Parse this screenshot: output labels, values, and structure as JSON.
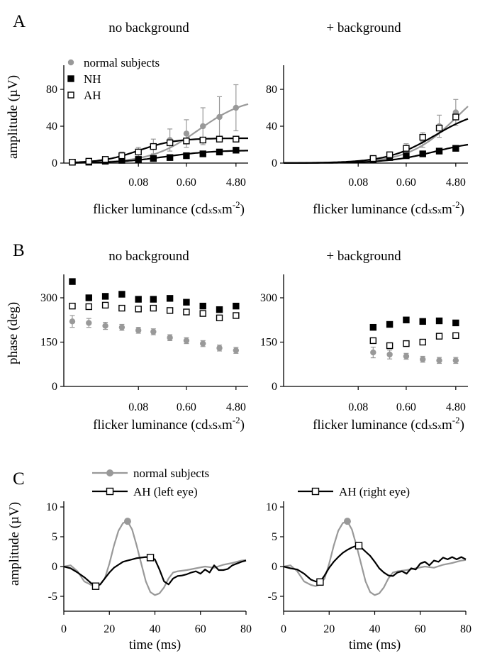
{
  "panel_labels": [
    "A",
    "B",
    "C"
  ],
  "colors": {
    "normal": "#999999",
    "patient": "#000000"
  },
  "chart_data": [
    {
      "id": "A-left",
      "type": "scatter",
      "panel": "A",
      "title": "no background",
      "xlabel": "flicker luminance (cd x s x m-2)",
      "ylabel": "amplitude (µV)",
      "xscale": "log",
      "xlim": [
        0.0035,
        8.0
      ],
      "ylim": [
        0,
        100
      ],
      "xticks": [
        0.08,
        0.6,
        4.8
      ],
      "xtick_labels": [
        "0.08",
        "0.60",
        "4.80"
      ],
      "yticks": [
        0,
        40,
        80
      ],
      "ytick_labels": [
        "0",
        "40",
        "80"
      ],
      "legend": {
        "position": "top-left",
        "entries": [
          "normal subjects",
          "NH",
          "AH"
        ]
      },
      "series": [
        {
          "name": "normal subjects",
          "marker": "circle",
          "color": "#999999",
          "x": [
            0.005,
            0.01,
            0.02,
            0.04,
            0.08,
            0.15,
            0.3,
            0.6,
            1.2,
            2.4,
            4.8
          ],
          "y": [
            1,
            2,
            4,
            8,
            12,
            18,
            25,
            32,
            40,
            50,
            60
          ],
          "err": [
            1,
            2,
            3,
            4,
            5,
            8,
            12,
            15,
            20,
            22,
            25
          ],
          "fit": {
            "ymax": 72,
            "k": 1.0,
            "n": 1.0,
            "offset": 0,
            "x_from": 0.005,
            "x_to": 8.0
          }
        },
        {
          "name": "NH",
          "marker": "square-filled",
          "color": "#000000",
          "x": [
            0.005,
            0.01,
            0.02,
            0.04,
            0.08,
            0.15,
            0.3,
            0.6,
            1.2,
            2.4,
            4.8
          ],
          "y": [
            1,
            1,
            2,
            3,
            4,
            5,
            6,
            8,
            10,
            12,
            14
          ],
          "fit": {
            "ymax": 14,
            "k": 0.25,
            "n": 1.0,
            "offset": 0,
            "x_from": 0.005,
            "x_to": 8.0
          }
        },
        {
          "name": "AH",
          "marker": "square-open",
          "color": "#000000",
          "x": [
            0.005,
            0.01,
            0.02,
            0.04,
            0.08,
            0.15,
            0.3,
            0.6,
            1.2,
            2.4,
            4.8
          ],
          "y": [
            1,
            2,
            4,
            8,
            12,
            18,
            22,
            24,
            25,
            26,
            26
          ],
          "fit": {
            "ymax": 27,
            "k": 0.08,
            "n": 1.3,
            "offset": 0,
            "x_from": 0.005,
            "x_to": 8.0
          }
        }
      ]
    },
    {
      "id": "A-right",
      "type": "scatter",
      "panel": "A",
      "title": "+ background",
      "xlabel": "flicker luminance (cd x s x m-2)",
      "ylabel": "",
      "xscale": "log",
      "xlim": [
        0.0035,
        8.0
      ],
      "ylim": [
        0,
        100
      ],
      "xticks": [
        0.08,
        0.6,
        4.8
      ],
      "xtick_labels": [
        "0.08",
        "0.60",
        "4.80"
      ],
      "yticks": [
        0,
        40,
        80
      ],
      "ytick_labels": [
        "0",
        "40",
        "80"
      ],
      "series": [
        {
          "name": "normal subjects",
          "marker": "circle",
          "color": "#999999",
          "x": [
            0.15,
            0.3,
            0.6,
            1.2,
            2.4,
            4.8
          ],
          "y": [
            4,
            8,
            15,
            25,
            40,
            55
          ],
          "err": [
            2,
            3,
            6,
            8,
            12,
            14
          ],
          "fit": {
            "ymax": 100,
            "k": 5.0,
            "n": 1.0,
            "offset": 0,
            "x_from": 0.0035,
            "x_to": 8.0
          }
        },
        {
          "name": "NH",
          "marker": "square-filled",
          "color": "#000000",
          "x": [
            0.15,
            0.3,
            0.6,
            1.2,
            2.4,
            4.8
          ],
          "y": [
            4,
            6,
            8,
            10,
            13,
            16
          ],
          "fit": {
            "ymax": 25,
            "k": 2.0,
            "n": 1.0,
            "offset": 0,
            "x_from": 0.0035,
            "x_to": 8.0
          }
        },
        {
          "name": "AH",
          "marker": "square-open",
          "color": "#000000",
          "x": [
            0.15,
            0.3,
            0.6,
            1.2,
            2.4,
            4.8
          ],
          "y": [
            5,
            9,
            16,
            28,
            38,
            50
          ],
          "fit": {
            "ymax": 60,
            "k": 2.0,
            "n": 1.0,
            "offset": 0,
            "x_from": 0.0035,
            "x_to": 8.0
          }
        }
      ]
    },
    {
      "id": "B-left",
      "type": "scatter",
      "panel": "B",
      "title": "no background",
      "xlabel": "flicker luminance (cd x s x m-2)",
      "ylabel": "phase (deg)",
      "xscale": "log",
      "xlim": [
        0.0035,
        8.0
      ],
      "ylim": [
        0,
        360
      ],
      "xticks": [
        0.08,
        0.6,
        4.8
      ],
      "xtick_labels": [
        "0.08",
        "0.60",
        "4.80"
      ],
      "yticks": [
        0,
        150,
        300
      ],
      "ytick_labels": [
        "0",
        "150",
        "300"
      ],
      "series": [
        {
          "name": "normal subjects",
          "marker": "circle",
          "color": "#999999",
          "x": [
            0.005,
            0.01,
            0.02,
            0.04,
            0.08,
            0.15,
            0.3,
            0.6,
            1.2,
            2.4,
            4.8
          ],
          "y": [
            220,
            215,
            205,
            200,
            190,
            185,
            165,
            155,
            145,
            130,
            122
          ],
          "err": [
            20,
            15,
            12,
            10,
            10,
            10,
            10,
            10,
            10,
            10,
            10
          ]
        },
        {
          "name": "NH",
          "marker": "square-filled",
          "color": "#000000",
          "x": [
            0.005,
            0.01,
            0.02,
            0.04,
            0.08,
            0.15,
            0.3,
            0.6,
            1.2,
            2.4,
            4.8
          ],
          "y": [
            355,
            300,
            305,
            312,
            295,
            295,
            298,
            285,
            272,
            260,
            272
          ]
        },
        {
          "name": "AH",
          "marker": "square-open",
          "color": "#000000",
          "x": [
            0.005,
            0.01,
            0.02,
            0.04,
            0.08,
            0.15,
            0.3,
            0.6,
            1.2,
            2.4,
            4.8
          ],
          "y": [
            272,
            270,
            275,
            265,
            262,
            265,
            257,
            252,
            247,
            232,
            240
          ]
        }
      ]
    },
    {
      "id": "B-right",
      "type": "scatter",
      "panel": "B",
      "title": "+ background",
      "xlabel": "flicker luminance (cd x s x m-2)",
      "ylabel": "",
      "xscale": "log",
      "xlim": [
        0.0035,
        8.0
      ],
      "ylim": [
        0,
        360
      ],
      "xticks": [
        0.08,
        0.6,
        4.8
      ],
      "xtick_labels": [
        "0.08",
        "0.60",
        "4.80"
      ],
      "yticks": [
        0,
        150,
        300
      ],
      "ytick_labels": [
        "0",
        "150",
        "300"
      ],
      "series": [
        {
          "name": "normal subjects",
          "marker": "circle",
          "color": "#999999",
          "x": [
            0.15,
            0.3,
            0.6,
            1.2,
            2.4,
            4.8
          ],
          "y": [
            115,
            108,
            102,
            92,
            88,
            88
          ],
          "err": [
            18,
            15,
            10,
            10,
            10,
            10
          ]
        },
        {
          "name": "NH",
          "marker": "square-filled",
          "color": "#000000",
          "x": [
            0.15,
            0.3,
            0.6,
            1.2,
            2.4,
            4.8
          ],
          "y": [
            200,
            210,
            225,
            220,
            222,
            215
          ]
        },
        {
          "name": "AH",
          "marker": "square-open",
          "color": "#000000",
          "x": [
            0.15,
            0.3,
            0.6,
            1.2,
            2.4,
            4.8
          ],
          "y": [
            155,
            138,
            145,
            150,
            170,
            172
          ]
        }
      ]
    },
    {
      "id": "C-left",
      "type": "line",
      "panel": "C",
      "title": "",
      "xlabel": "time (ms)",
      "ylabel": "amplitude (µV)",
      "xlim": [
        0,
        80
      ],
      "ylim": [
        -7.5,
        10
      ],
      "xticks": [
        0,
        20,
        40,
        60,
        80
      ],
      "xtick_labels": [
        "0",
        "20",
        "40",
        "60",
        "80"
      ],
      "yticks": [
        -5,
        0,
        5,
        10
      ],
      "ytick_labels": [
        "-5",
        "0",
        "5",
        "10"
      ],
      "legend": {
        "position": "top",
        "entries": [
          "normal subjects",
          "AH (left eye)"
        ]
      },
      "series": [
        {
          "name": "normal subjects",
          "color": "#999999",
          "x": [
            0,
            3,
            6,
            9,
            12,
            14,
            16,
            18,
            20,
            22,
            24,
            26,
            28,
            30,
            32,
            34,
            36,
            38,
            40,
            42,
            44,
            46,
            48,
            50,
            54,
            58,
            62,
            66,
            70,
            74,
            78,
            80
          ],
          "y": [
            0,
            0.2,
            -0.8,
            -2.5,
            -3.1,
            -3.3,
            -3.0,
            -2.0,
            0.5,
            3.5,
            6.0,
            7.3,
            7.6,
            6.2,
            3.5,
            0.5,
            -2.5,
            -4.3,
            -4.8,
            -4.5,
            -3.5,
            -2.0,
            -1.0,
            -0.8,
            -0.6,
            -0.3,
            0,
            -0.2,
            0.3,
            0.6,
            1.0,
            1.1
          ],
          "markers": [
            {
              "x": 28,
              "y": 7.6
            }
          ]
        },
        {
          "name": "AH (left eye)",
          "color": "#000000",
          "x": [
            0,
            3,
            6,
            9,
            12,
            14,
            16,
            18,
            20,
            22,
            24,
            26,
            28,
            30,
            32,
            34,
            36,
            38,
            40,
            42,
            44,
            46,
            48,
            50,
            52,
            54,
            56,
            58,
            60,
            62,
            64,
            66,
            68,
            70,
            72,
            74,
            76,
            78,
            80
          ],
          "y": [
            0,
            -0.3,
            -1.0,
            -1.8,
            -2.8,
            -3.3,
            -3.0,
            -2.0,
            -1.0,
            -0.2,
            0.3,
            0.8,
            1.0,
            1.2,
            1.4,
            1.5,
            1.6,
            1.5,
            1.2,
            -0.5,
            -2.5,
            -3.0,
            -2.0,
            -1.6,
            -1.5,
            -1.3,
            -1.0,
            -0.8,
            -1.2,
            -0.5,
            -1.0,
            0.2,
            -0.6,
            -0.6,
            -0.4,
            0.2,
            0.5,
            0.8,
            1.0
          ],
          "markers": [
            {
              "x": 14,
              "y": -3.3
            },
            {
              "x": 38,
              "y": 1.5
            }
          ]
        }
      ]
    },
    {
      "id": "C-right",
      "type": "line",
      "panel": "C",
      "title": "",
      "xlabel": "time (ms)",
      "ylabel": "",
      "xlim": [
        0,
        80
      ],
      "ylim": [
        -7.5,
        10
      ],
      "xticks": [
        0,
        20,
        40,
        60,
        80
      ],
      "xtick_labels": [
        "0",
        "20",
        "40",
        "60",
        "80"
      ],
      "yticks": [
        -5,
        0,
        5,
        10
      ],
      "ytick_labels": [
        "-5",
        "0",
        "5",
        "10"
      ],
      "legend": {
        "position": "top",
        "entries": [
          "AH (right eye)"
        ]
      },
      "series": [
        {
          "name": "normal subjects",
          "color": "#999999",
          "x": [
            0,
            3,
            6,
            9,
            12,
            14,
            16,
            18,
            20,
            22,
            24,
            26,
            28,
            30,
            32,
            34,
            36,
            38,
            40,
            42,
            44,
            46,
            48,
            50,
            54,
            58,
            62,
            66,
            70,
            74,
            78,
            80
          ],
          "y": [
            0,
            0.2,
            -0.8,
            -2.5,
            -3.1,
            -3.3,
            -3.0,
            -2.0,
            0.5,
            3.5,
            6.0,
            7.3,
            7.6,
            6.2,
            3.5,
            0.5,
            -2.5,
            -4.3,
            -4.8,
            -4.5,
            -3.5,
            -2.0,
            -1.0,
            -0.8,
            -0.6,
            -0.3,
            0,
            -0.2,
            0.3,
            0.6,
            1.0,
            1.1
          ],
          "markers": [
            {
              "x": 28,
              "y": 7.6
            }
          ]
        },
        {
          "name": "AH (right eye)",
          "color": "#000000",
          "x": [
            0,
            3,
            6,
            9,
            12,
            14,
            16,
            18,
            20,
            22,
            24,
            26,
            28,
            30,
            32,
            34,
            36,
            38,
            40,
            42,
            44,
            46,
            48,
            50,
            52,
            54,
            56,
            58,
            60,
            62,
            64,
            66,
            68,
            70,
            72,
            74,
            76,
            78,
            80
          ],
          "y": [
            0,
            -0.3,
            -0.5,
            -1.2,
            -2.2,
            -2.5,
            -2.6,
            -1.5,
            -0.2,
            0.8,
            1.6,
            2.3,
            2.8,
            3.2,
            3.5,
            3.2,
            2.5,
            1.8,
            0.8,
            -0.3,
            -1.0,
            -1.5,
            -1.6,
            -1.0,
            -0.8,
            -1.2,
            -0.3,
            -0.5,
            0.5,
            0.8,
            0.2,
            1.0,
            0.8,
            1.5,
            1.2,
            1.6,
            1.2,
            1.6,
            1.2
          ],
          "markers": [
            {
              "x": 16,
              "y": -2.6
            },
            {
              "x": 33,
              "y": 3.5
            }
          ]
        }
      ]
    }
  ]
}
